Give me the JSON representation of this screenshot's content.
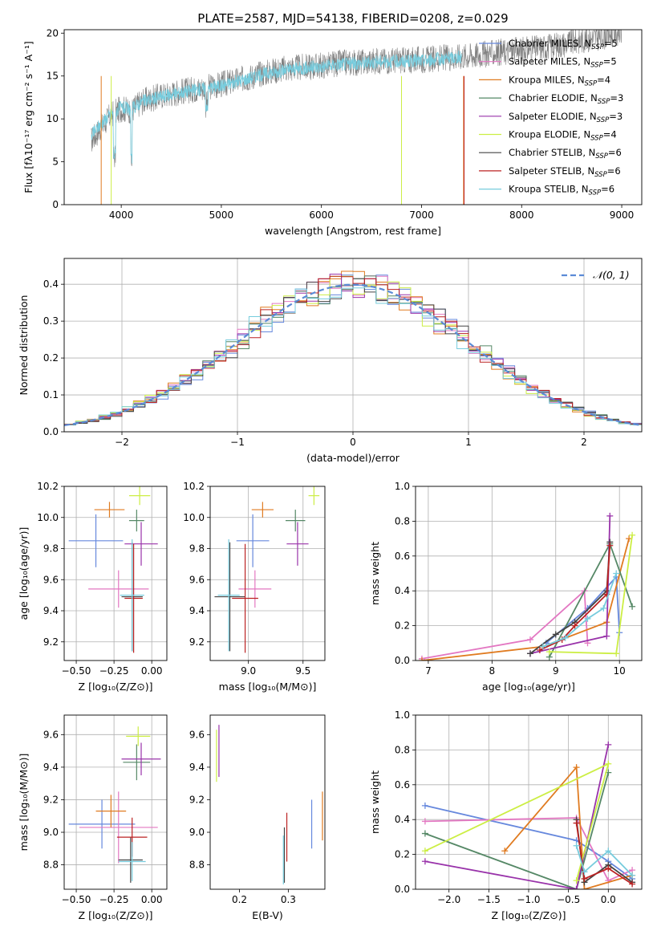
{
  "figure_title": "PLATE=2587, MJD=54138, FIBERID=0208, z=0.029",
  "legend_entries": [
    {
      "name": "Chabrier MILES, N",
      "sub": "SSP",
      "tail": "=5",
      "color": "#6688dd"
    },
    {
      "name": "Salpeter MILES, N",
      "sub": "SSP",
      "tail": "=5",
      "color": "#e377c2"
    },
    {
      "name": "Kroupa MILES, N",
      "sub": "SSP",
      "tail": "=4",
      "color": "#e07b20"
    },
    {
      "name": "Chabrier ELODIE, N",
      "sub": "SSP",
      "tail": "=3",
      "color": "#558866"
    },
    {
      "name": "Salpeter ELODIE, N",
      "sub": "SSP",
      "tail": "=3",
      "color": "#9933aa"
    },
    {
      "name": "Kroupa ELODIE, N",
      "sub": "SSP",
      "tail": "=4",
      "color": "#ccee44"
    },
    {
      "name": "Chabrier STELIB, N",
      "sub": "SSP",
      "tail": "=6",
      "color": "#444444"
    },
    {
      "name": "Salpeter STELIB, N",
      "sub": "SSP",
      "tail": "=6",
      "color": "#bb2222"
    },
    {
      "name": "Kroupa STELIB, N",
      "sub": "SSP",
      "tail": "=6",
      "color": "#77ccdd"
    }
  ],
  "chart_data": [
    {
      "id": "spectrum",
      "type": "line",
      "title": "PLATE=2587, MJD=54138, FIBERID=0208, z=0.029",
      "xlabel": "wavelength [Angstrom, rest frame]",
      "ylabel": "Flux [fλ10⁻¹⁷ erg cm⁻² s⁻¹ A⁻¹]",
      "xlim": [
        3430,
        9200
      ],
      "ylim": [
        0,
        20.4
      ],
      "xticks": [
        4000,
        5000,
        6000,
        7000,
        8000,
        9000
      ],
      "yticks": [
        0,
        5,
        10,
        15,
        20
      ],
      "grid": false,
      "legend_position": "lower-right",
      "series": [
        {
          "name": "data",
          "color": "#808080",
          "wave_start": 3700,
          "wave_end": 9000,
          "x": [
            3700,
            3800,
            3900,
            4000,
            4100,
            4200,
            4400,
            4600,
            4800,
            5000,
            5200,
            5400,
            5600,
            5800,
            6000,
            6200,
            6400,
            6600,
            6800,
            7000,
            7200,
            7400,
            7600,
            7800,
            8000,
            8200,
            8400,
            8600,
            8800,
            9000
          ],
          "y": [
            7.5,
            9.0,
            10.5,
            11.2,
            11.0,
            12.0,
            12.7,
            13.2,
            13.6,
            14.0,
            14.6,
            15.3,
            15.8,
            16.0,
            16.2,
            16.5,
            16.6,
            16.8,
            16.8,
            16.9,
            17.1,
            17.3,
            17.5,
            17.8,
            18.0,
            18.3,
            18.7,
            19.2,
            19.6,
            20.2
          ]
        },
        {
          "name": "model",
          "color": "#77ccdd",
          "x": [
            3700,
            3800,
            3900,
            4000,
            4100,
            4200,
            4400,
            4600,
            4800,
            5000,
            5200,
            5400,
            5600,
            5800,
            6000,
            6200,
            6400,
            6600,
            6800,
            7000,
            7200,
            7400
          ],
          "y": [
            8.0,
            9.5,
            10.6,
            11.3,
            11.1,
            12.0,
            12.6,
            13.1,
            13.5,
            13.9,
            14.5,
            15.2,
            15.6,
            15.9,
            16.1,
            16.4,
            16.5,
            16.7,
            16.7,
            16.8,
            17.0,
            17.2
          ]
        }
      ]
    },
    {
      "id": "residuals",
      "type": "bar",
      "xlabel": "(data-model)/error",
      "ylabel": "Normed distribution",
      "xlim": [
        -2.5,
        2.5
      ],
      "ylim": [
        0,
        0.47
      ],
      "xticks": [
        -2,
        -1,
        0,
        1,
        2
      ],
      "yticks": [
        0.0,
        0.1,
        0.2,
        0.3,
        0.4
      ],
      "grid": true,
      "legend_position": "top-right",
      "legend_label": "𝒩(0, 1)",
      "gaussian": {
        "mu": 0,
        "sigma": 1,
        "color": "#5b8bd6"
      }
    },
    {
      "id": "age-vs-Z",
      "type": "scatter",
      "xlabel": "Z [log₁₀(Z/Z⊙)]",
      "ylabel": "age  [log₁₀(age/yr)]",
      "xlim": [
        -0.58,
        0.1
      ],
      "ylim": [
        9.08,
        10.2
      ],
      "xticks": [
        -0.5,
        -0.25,
        0.0
      ],
      "xticklabels": [
        "−0.50",
        "−0.25",
        "0.00"
      ],
      "yticks": [
        9.2,
        9.4,
        9.6,
        9.8,
        10.0,
        10.2
      ],
      "grid": true,
      "points": [
        {
          "x": -0.37,
          "y": 9.85,
          "xerr": 0.18,
          "yerr": 0.17,
          "color": "#6688dd"
        },
        {
          "x": -0.22,
          "y": 9.54,
          "xerr": 0.2,
          "yerr": 0.12,
          "color": "#e377c2"
        },
        {
          "x": -0.28,
          "y": 10.05,
          "xerr": 0.1,
          "yerr": 0.05,
          "color": "#e07b20"
        },
        {
          "x": -0.1,
          "y": 9.98,
          "xerr": 0.05,
          "yerr": 0.07,
          "color": "#558866"
        },
        {
          "x": -0.07,
          "y": 9.83,
          "xerr": 0.11,
          "yerr": 0.14,
          "color": "#9933aa"
        },
        {
          "x": -0.08,
          "y": 10.14,
          "xerr": 0.07,
          "yerr": 0.06,
          "color": "#ccee44"
        },
        {
          "x": -0.13,
          "y": 9.49,
          "xerr": 0.07,
          "yerr": 0.35,
          "color": "#444444"
        },
        {
          "x": -0.12,
          "y": 9.48,
          "xerr": 0.06,
          "yerr": 0.35,
          "color": "#bb2222"
        },
        {
          "x": -0.13,
          "y": 9.5,
          "xerr": 0.08,
          "yerr": 0.36,
          "color": "#77ccdd"
        }
      ]
    },
    {
      "id": "age-vs-mass",
      "type": "scatter",
      "xlabel": "mass [log₁₀(M/M⊙)]",
      "xlim": [
        8.65,
        9.7
      ],
      "ylim": [
        9.08,
        10.2
      ],
      "xticks": [
        9.0,
        9.5
      ],
      "xticklabels": [
        "9.0",
        "9.5"
      ],
      "yticks": [
        9.2,
        9.4,
        9.6,
        9.8,
        10.0,
        10.2
      ],
      "grid": true,
      "points": [
        {
          "x": 9.04,
          "y": 9.85,
          "xerr": 0.15,
          "yerr": 0.17,
          "color": "#6688dd"
        },
        {
          "x": 9.06,
          "y": 9.54,
          "xerr": 0.15,
          "yerr": 0.12,
          "color": "#e377c2"
        },
        {
          "x": 9.13,
          "y": 10.05,
          "xerr": 0.1,
          "yerr": 0.05,
          "color": "#e07b20"
        },
        {
          "x": 9.43,
          "y": 9.98,
          "xerr": 0.09,
          "yerr": 0.07,
          "color": "#558866"
        },
        {
          "x": 9.45,
          "y": 9.83,
          "xerr": 0.1,
          "yerr": 0.14,
          "color": "#9933aa"
        },
        {
          "x": 9.6,
          "y": 10.14,
          "xerr": 0.05,
          "yerr": 0.06,
          "color": "#ccee44"
        },
        {
          "x": 8.83,
          "y": 9.49,
          "xerr": 0.14,
          "yerr": 0.35,
          "color": "#444444"
        },
        {
          "x": 8.97,
          "y": 9.48,
          "xerr": 0.12,
          "yerr": 0.35,
          "color": "#bb2222"
        },
        {
          "x": 8.82,
          "y": 9.5,
          "xerr": 0.1,
          "yerr": 0.36,
          "color": "#77ccdd"
        }
      ]
    },
    {
      "id": "weight-vs-age",
      "type": "line",
      "xlabel": "age  [log₁₀(age/yr)]",
      "ylabel": "mass weight",
      "xlim": [
        6.8,
        10.35
      ],
      "ylim": [
        0,
        1.0
      ],
      "xticks": [
        7,
        8,
        9,
        10
      ],
      "yticks": [
        0.0,
        0.2,
        0.4,
        0.6,
        0.8,
        1.0
      ],
      "grid": true,
      "series": [
        {
          "name": "Chabrier MILES",
          "color": "#6688dd",
          "x": [
            8.85,
            9.5,
            9.95,
            10.0
          ],
          "y": [
            0.1,
            0.3,
            0.48,
            0.16
          ]
        },
        {
          "name": "Salpeter MILES",
          "color": "#e377c2",
          "x": [
            6.9,
            8.6,
            9.45,
            9.5
          ],
          "y": [
            0.01,
            0.12,
            0.4,
            0.1
          ]
        },
        {
          "name": "Kroupa MILES",
          "color": "#e07b20",
          "x": [
            6.9,
            8.8,
            9.8,
            10.15
          ],
          "y": [
            0.0,
            0.08,
            0.22,
            0.7
          ]
        },
        {
          "name": "Chabrier ELODIE",
          "color": "#558866",
          "x": [
            8.9,
            9.85,
            10.2
          ],
          "y": [
            0.02,
            0.67,
            0.31
          ]
        },
        {
          "name": "Salpeter ELODIE",
          "color": "#9933aa",
          "x": [
            8.6,
            9.8,
            9.85
          ],
          "y": [
            0.04,
            0.14,
            0.83
          ]
        },
        {
          "name": "Kroupa ELODIE",
          "color": "#ccee44",
          "x": [
            8.9,
            9.95,
            10.2
          ],
          "y": [
            0.05,
            0.04,
            0.72
          ]
        },
        {
          "name": "Chabrier STELIB",
          "color": "#444444",
          "x": [
            8.6,
            9.0,
            9.3,
            9.8,
            9.85
          ],
          "y": [
            0.04,
            0.15,
            0.22,
            0.4,
            0.68
          ]
        },
        {
          "name": "Salpeter STELIB",
          "color": "#bb2222",
          "x": [
            8.75,
            9.1,
            9.3,
            9.8,
            9.85
          ],
          "y": [
            0.06,
            0.12,
            0.2,
            0.38,
            0.66
          ]
        },
        {
          "name": "Kroupa STELIB",
          "color": "#77ccdd",
          "x": [
            8.8,
            9.15,
            9.5,
            9.75,
            9.95
          ],
          "y": [
            0.08,
            0.13,
            0.24,
            0.3,
            0.5
          ]
        }
      ]
    },
    {
      "id": "mass-vs-Z",
      "type": "scatter",
      "xlabel": "Z [log₁₀(Z/Z⊙)]",
      "ylabel": "mass [log₁₀(M/M⊙)]",
      "xlim": [
        -0.58,
        0.1
      ],
      "ylim": [
        8.65,
        9.72
      ],
      "xticks": [
        -0.5,
        -0.25,
        0.0
      ],
      "xticklabels": [
        "−0.50",
        "−0.25",
        "0.00"
      ],
      "yticks": [
        8.8,
        9.0,
        9.2,
        9.4,
        9.6
      ],
      "grid": true,
      "points": [
        {
          "x": -0.33,
          "y": 9.05,
          "xerr": 0.22,
          "yerr": 0.15,
          "color": "#6688dd"
        },
        {
          "x": -0.22,
          "y": 9.03,
          "xerr": 0.26,
          "yerr": 0.22,
          "color": "#e377c2"
        },
        {
          "x": -0.27,
          "y": 9.13,
          "xerr": 0.1,
          "yerr": 0.1,
          "color": "#e07b20"
        },
        {
          "x": -0.1,
          "y": 9.43,
          "xerr": 0.09,
          "yerr": 0.11,
          "color": "#558866"
        },
        {
          "x": -0.07,
          "y": 9.45,
          "xerr": 0.13,
          "yerr": 0.1,
          "color": "#9933aa"
        },
        {
          "x": -0.09,
          "y": 9.59,
          "xerr": 0.08,
          "yerr": 0.06,
          "color": "#ccee44"
        },
        {
          "x": -0.14,
          "y": 8.83,
          "xerr": 0.08,
          "yerr": 0.14,
          "color": "#444444"
        },
        {
          "x": -0.13,
          "y": 8.97,
          "xerr": 0.1,
          "yerr": 0.12,
          "color": "#bb2222"
        },
        {
          "x": -0.13,
          "y": 8.82,
          "xerr": 0.09,
          "yerr": 0.12,
          "color": "#77ccdd"
        }
      ]
    },
    {
      "id": "mass-vs-EBV",
      "type": "scatter",
      "xlabel": "E(B-V)",
      "xlim": [
        0.14,
        0.375
      ],
      "ylim": [
        8.65,
        9.72
      ],
      "xticks": [
        0.2,
        0.3
      ],
      "xticklabels": [
        "0.2",
        "0.3"
      ],
      "yticks": [
        8.8,
        9.0,
        9.2,
        9.4,
        9.6
      ],
      "grid": false,
      "points": [
        {
          "x": 0.348,
          "y": 9.05,
          "xerr": 0,
          "yerr": 0.15,
          "color": "#6688dd"
        },
        {
          "x": 0.37,
          "y": 9.1,
          "xerr": 0,
          "yerr": 0.15,
          "color": "#e07b20"
        },
        {
          "x": 0.158,
          "y": 9.5,
          "xerr": 0,
          "yerr": 0.16,
          "color": "#9933aa"
        },
        {
          "x": 0.153,
          "y": 9.47,
          "xerr": 0,
          "yerr": 0.16,
          "color": "#ccee44"
        },
        {
          "x": 0.297,
          "y": 8.97,
          "xerr": 0,
          "yerr": 0.15,
          "color": "#bb2222"
        },
        {
          "x": 0.292,
          "y": 8.86,
          "xerr": 0,
          "yerr": 0.17,
          "color": "#444444"
        },
        {
          "x": 0.29,
          "y": 8.83,
          "xerr": 0,
          "yerr": 0.15,
          "color": "#77ccdd"
        }
      ]
    },
    {
      "id": "weight-vs-Z",
      "type": "line",
      "xlabel": "Z [log₁₀(Z/Z⊙)]",
      "ylabel": "mass weight",
      "xlim": [
        -2.42,
        0.42
      ],
      "ylim": [
        0,
        1.0
      ],
      "xticks": [
        -2.0,
        -1.5,
        -1.0,
        -0.5,
        0.0
      ],
      "xticklabels": [
        "−2.0",
        "−1.5",
        "−1.0",
        "−0.5",
        "0.0"
      ],
      "yticks": [
        0.0,
        0.2,
        0.4,
        0.6,
        0.8,
        1.0
      ],
      "grid": true,
      "series": [
        {
          "name": "Chabrier MILES",
          "color": "#6688dd",
          "x": [
            -2.3,
            -0.4,
            0.0,
            0.3
          ],
          "y": [
            0.48,
            0.28,
            0.16,
            0.06
          ]
        },
        {
          "name": "Salpeter MILES",
          "color": "#e377c2",
          "x": [
            -2.3,
            -0.4,
            0.0,
            0.3
          ],
          "y": [
            0.39,
            0.41,
            0.05,
            0.11
          ]
        },
        {
          "name": "Kroupa MILES",
          "color": "#e07b20",
          "x": [
            -1.3,
            -0.4,
            -0.3,
            0.3
          ],
          "y": [
            0.22,
            0.7,
            0.0,
            0.08
          ]
        },
        {
          "name": "Chabrier ELODIE",
          "color": "#558866",
          "x": [
            -2.3,
            -0.4,
            0.0
          ],
          "y": [
            0.32,
            0.0,
            0.67
          ]
        },
        {
          "name": "Salpeter ELODIE",
          "color": "#9933aa",
          "x": [
            -2.3,
            -0.4,
            0.0
          ],
          "y": [
            0.16,
            0.0,
            0.83
          ]
        },
        {
          "name": "Kroupa ELODIE",
          "color": "#ccee44",
          "x": [
            -2.3,
            0.0,
            -0.4
          ],
          "y": [
            0.22,
            0.72,
            0.05
          ]
        },
        {
          "name": "Chabrier STELIB",
          "color": "#444444",
          "x": [
            -0.4,
            -0.3,
            0.0,
            0.3
          ],
          "y": [
            0.4,
            0.04,
            0.14,
            0.04
          ]
        },
        {
          "name": "Salpeter STELIB",
          "color": "#bb2222",
          "x": [
            -0.4,
            -0.3,
            0.0,
            0.3
          ],
          "y": [
            0.38,
            0.06,
            0.12,
            0.03
          ]
        },
        {
          "name": "Kroupa STELIB",
          "color": "#77ccdd",
          "x": [
            -0.4,
            -0.3,
            0.0,
            0.3
          ],
          "y": [
            0.25,
            0.1,
            0.22,
            0.08
          ]
        }
      ]
    }
  ]
}
